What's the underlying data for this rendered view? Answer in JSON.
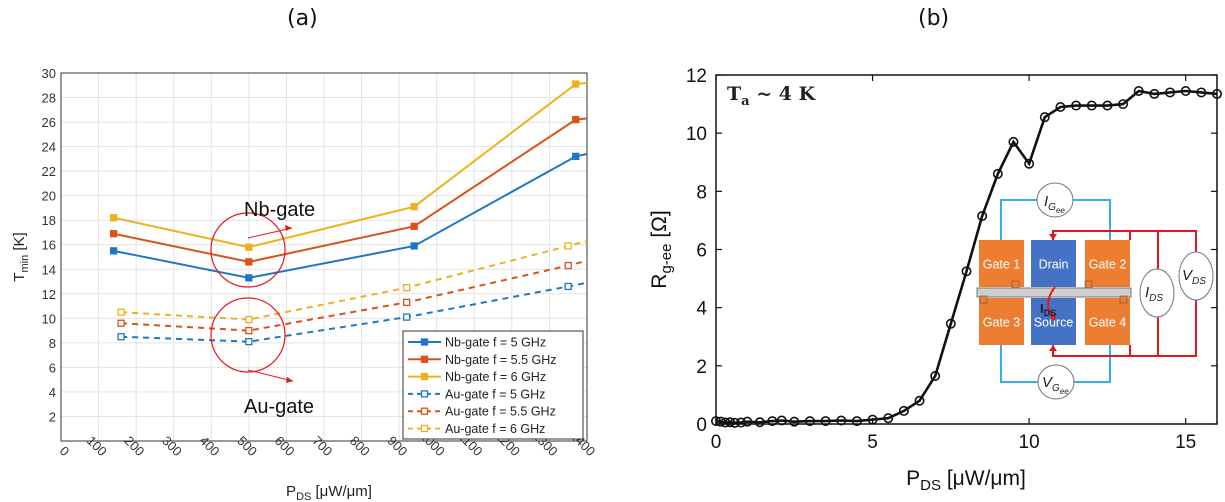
{
  "panel_labels": {
    "a": "(a)",
    "b": "(b)"
  },
  "colors": {
    "blue": "#1f77c4",
    "orange": "#d95319",
    "yellow": "#edb120",
    "red": "#e8141b",
    "black": "#111111",
    "gate_orange": "#ed7d31",
    "gate_blue": "#4472c4",
    "wire_cyan": "#2fb2e8"
  },
  "annotations": {
    "nb": "Nb-gate",
    "au": "Au-gate"
  },
  "chart_data": [
    {
      "type": "line",
      "x_title_main": "P",
      "x_title_sub": "DS",
      "x_title_rest": " [μW/μm]",
      "y_title_main": "T",
      "y_title_sub": "min",
      "y_title_rest": " [K]",
      "xlim": [
        0,
        1400
      ],
      "ylim": [
        0,
        30
      ],
      "xticks": [
        0,
        100,
        200,
        300,
        400,
        500,
        600,
        700,
        800,
        900,
        1000,
        1100,
        1200,
        1300,
        1400
      ],
      "yticks": [
        2,
        4,
        6,
        8,
        10,
        12,
        14,
        16,
        18,
        20,
        22,
        24,
        26,
        28,
        30
      ],
      "grid": true,
      "legend_position": "bottom-right",
      "series": [
        {
          "name": "Nb-gate f = 5 GHz",
          "color": "blue",
          "dash": false,
          "marker": "filled",
          "x": [
            140,
            500,
            940,
            1370
          ],
          "y": [
            15.5,
            13.3,
            15.9,
            23.2
          ],
          "tail": [
            1400,
            23.4
          ]
        },
        {
          "name": "Nb-gate f = 5.5 GHz",
          "color": "orange",
          "dash": false,
          "marker": "filled",
          "x": [
            140,
            500,
            940,
            1370
          ],
          "y": [
            16.9,
            14.6,
            17.5,
            26.2
          ],
          "tail": [
            1400,
            26.3
          ]
        },
        {
          "name": "Nb-gate f = 6 GHz",
          "color": "yellow",
          "dash": false,
          "marker": "filled",
          "x": [
            140,
            500,
            940,
            1370
          ],
          "y": [
            18.2,
            15.8,
            19.1,
            29.1
          ],
          "tail": [
            1400,
            29.2
          ]
        },
        {
          "name": "Au-gate f = 5 GHz",
          "color": "blue",
          "dash": true,
          "marker": "open",
          "x": [
            160,
            500,
            920,
            1350
          ],
          "y": [
            8.5,
            8.1,
            10.1,
            12.6
          ],
          "tail": [
            1400,
            12.9
          ]
        },
        {
          "name": "Au-gate f = 5.5 GHz",
          "color": "orange",
          "dash": true,
          "marker": "open",
          "x": [
            160,
            500,
            920,
            1350
          ],
          "y": [
            9.6,
            9.0,
            11.3,
            14.3
          ],
          "tail": [
            1400,
            14.7
          ]
        },
        {
          "name": "Au-gate f = 6 GHz",
          "color": "yellow",
          "dash": true,
          "marker": "open",
          "x": [
            160,
            500,
            920,
            1350
          ],
          "y": [
            10.5,
            9.9,
            12.5,
            15.9
          ],
          "tail": [
            1400,
            16.3
          ]
        }
      ]
    },
    {
      "type": "line",
      "x_title_main": "P",
      "x_title_sub": "DS",
      "x_title_rest": " [μW/μm]",
      "y_title_main": "R",
      "y_title_sub": "g-ee",
      "y_title_rest": " [Ω]",
      "xlim": [
        0,
        16
      ],
      "ylim": [
        0,
        12
      ],
      "xticks": [
        0,
        5,
        10,
        15
      ],
      "yticks": [
        0,
        2,
        4,
        6,
        8,
        10,
        12
      ],
      "grid": false,
      "annotation_main": "T",
      "annotation_sub": "a",
      "annotation_rest": " ~ 4 K",
      "series": [
        {
          "x": [
            0.0,
            0.15,
            0.3,
            0.45,
            0.6,
            0.8,
            1.0,
            1.4,
            1.8,
            2.1,
            2.5,
            3.0,
            3.5,
            4.0,
            4.5,
            5.0,
            5.5,
            6.0,
            6.5,
            7.0,
            7.5,
            8.0,
            8.5,
            9.0,
            9.5,
            10.0,
            10.5,
            11.0,
            11.5,
            12.0,
            12.5,
            13.0,
            13.5,
            14.0,
            14.5,
            15.0,
            15.5,
            16.0
          ],
          "y": [
            0.1,
            0.08,
            0.05,
            0.06,
            0.04,
            0.05,
            0.08,
            0.06,
            0.1,
            0.12,
            0.08,
            0.1,
            0.1,
            0.12,
            0.1,
            0.15,
            0.2,
            0.45,
            0.8,
            1.65,
            3.45,
            5.25,
            7.15,
            8.6,
            9.7,
            8.95,
            10.55,
            10.9,
            10.95,
            10.95,
            10.95,
            11.0,
            11.45,
            11.35,
            11.4,
            11.45,
            11.4,
            11.35
          ]
        }
      ]
    }
  ],
  "inset": {
    "gates": [
      "Gate 1",
      "Gate 2",
      "Gate 3",
      "Gate 4"
    ],
    "drain": "Drain",
    "source": "Source",
    "ids_main": "I",
    "ids_sub": "DS",
    "vds_main": "V",
    "vds_sub": "DS",
    "ig_main": "I",
    "ig_sub": "G",
    "ig_subsub": "ee",
    "vg_main": "V",
    "vg_sub": "G",
    "vg_subsub": "ee"
  }
}
